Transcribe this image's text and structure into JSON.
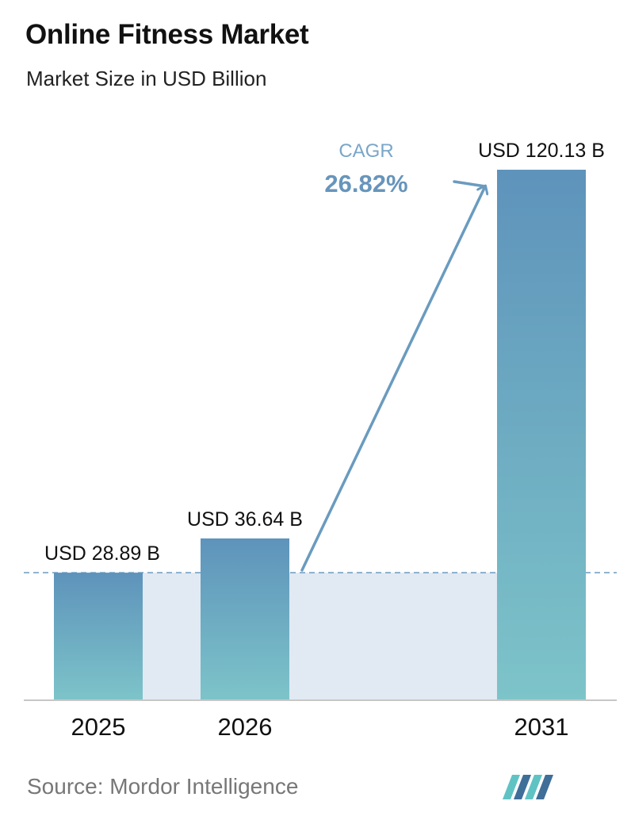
{
  "title": "Online Fitness Market",
  "subtitle": "Market Size in USD Billion",
  "source": "Source:  Mordor Intelligence",
  "colors": {
    "bar_top": "#5e93bb",
    "bar_bottom": "#7dc4c9",
    "band": "#e1e9f3",
    "arrow": "#6a9bbf",
    "axis": "#c7c7c7",
    "logo_dark": "#3f6e99",
    "logo_light": "#5fc3c4"
  },
  "cagr": {
    "label": "CAGR",
    "value": "26.82%"
  },
  "chart_data": {
    "type": "bar",
    "categories": [
      "2025",
      "2026",
      "2031"
    ],
    "values": [
      28.89,
      36.64,
      120.13
    ],
    "data_labels": [
      "USD 28.89 B",
      "USD 36.64 B",
      "USD 120.13 B"
    ],
    "unit": "USD Billion",
    "ylim": [
      0,
      120.13
    ],
    "grid": false,
    "legend": "none",
    "reference_line": {
      "value": 28.89,
      "style": "dashed"
    }
  }
}
